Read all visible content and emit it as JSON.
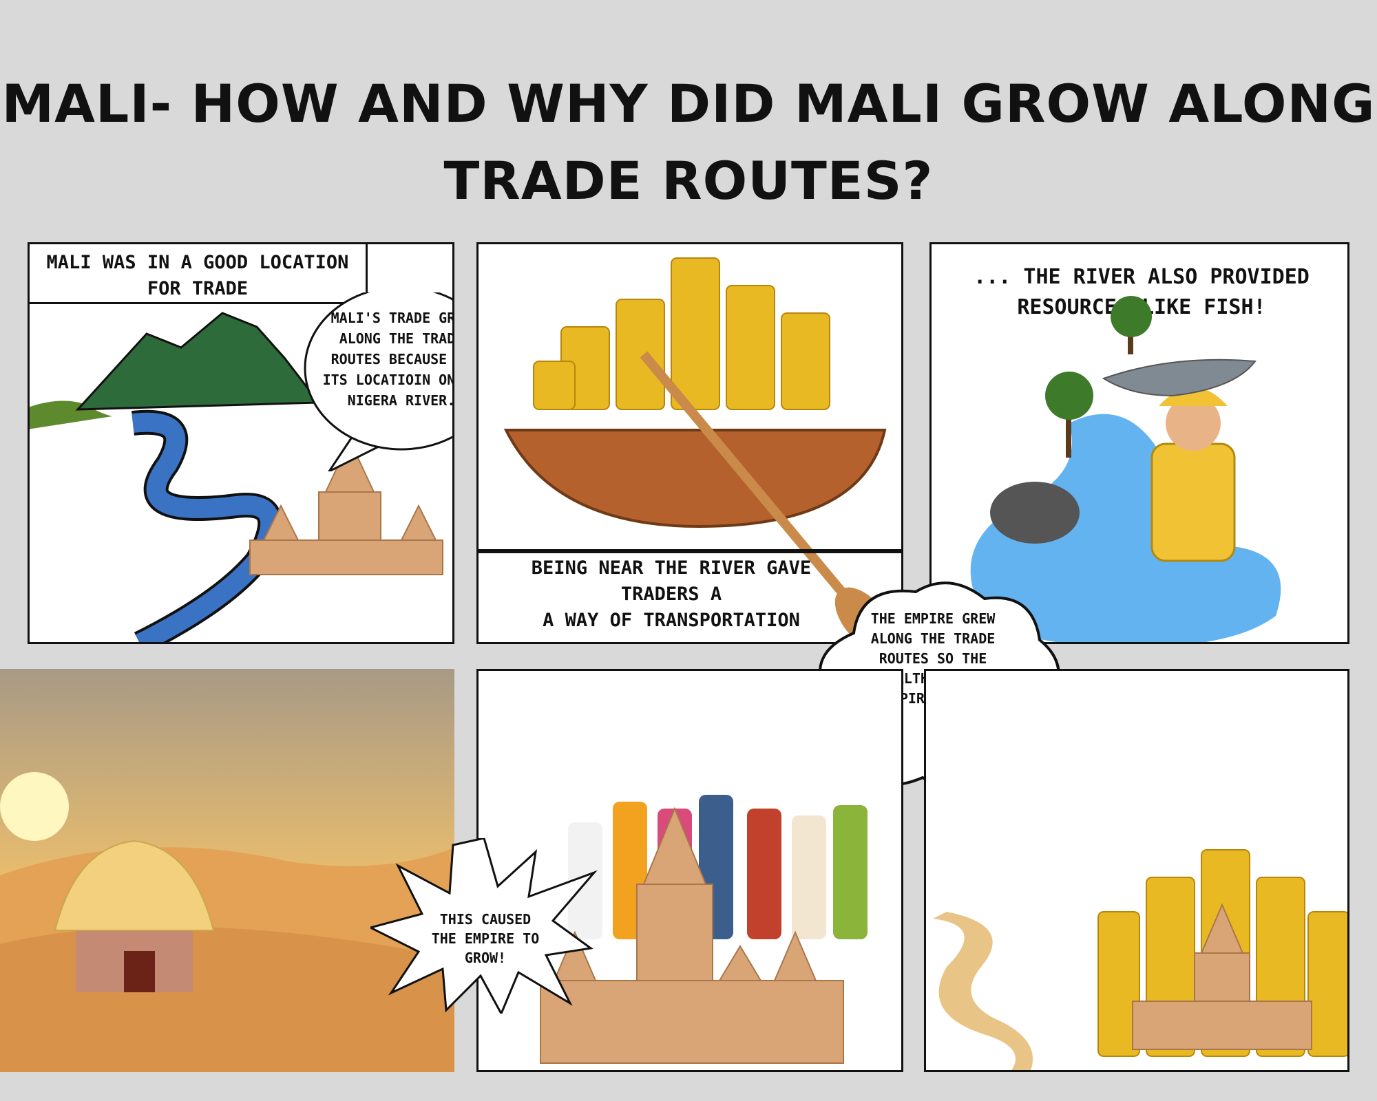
{
  "title": "MALI- HOW AND WHY DID MALI GROW ALONG TRADE ROUTES?",
  "panels": {
    "p1": {
      "caption": "MALI WAS IN A GOOD LOCATION FOR TRADE",
      "bubble": "MALI'S TRADE GREW ALONG THE TRADE ROUTES BECAUSE OF ITS LOCATIOIN ON HE NIGERA RIVER."
    },
    "p2": {
      "caption_line1": "BEING NEAR THE RIVER GAVE",
      "caption_line2": "TRADERS A",
      "caption_line3": "A WAY OF TRANSPORTATION"
    },
    "p3": {
      "caption_line1": "... THE RIVER ALSO PROVIDED",
      "caption_line2": "RESOURCES LIKE FISH!"
    },
    "thought": {
      "text": "THE EMPIRE GREW  ALONG THE TRADE ROUTES SO THE WEALTH OF THE EMPIRE GREW."
    },
    "p5": {
      "burst": "THIS CAUSED THE EMPIRE TO GROW!"
    }
  },
  "colors": {
    "background": "#d9d9d9",
    "river": "#3b73c4",
    "gold": "#e8b923",
    "mountain": "#2e6b3a",
    "sand": "#e3a256"
  }
}
